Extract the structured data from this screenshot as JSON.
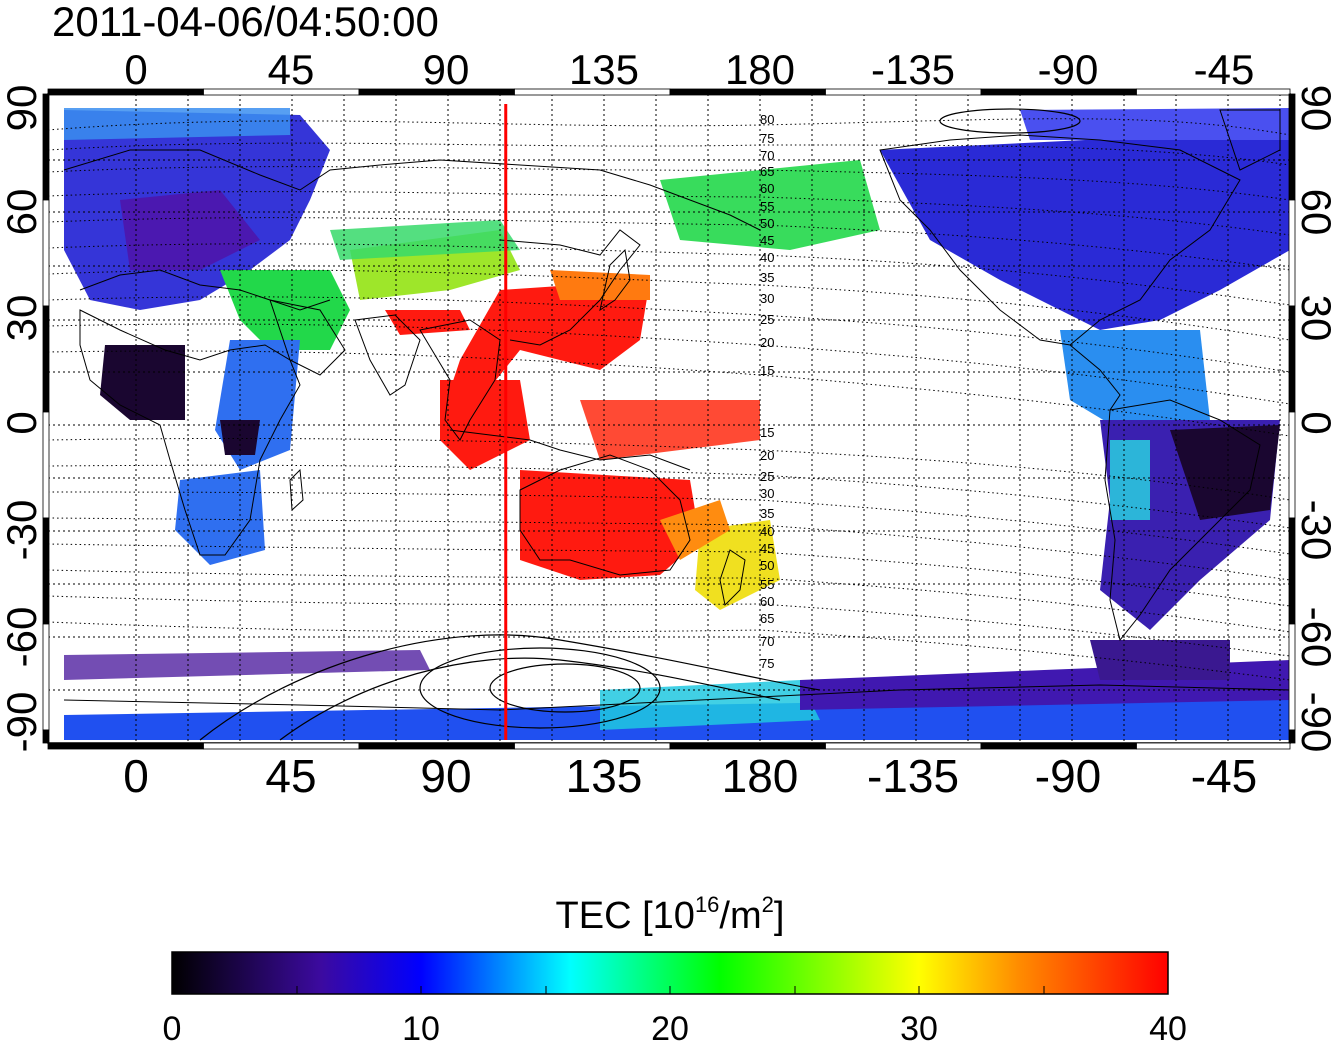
{
  "timestamp": "2011-04-06/04:50:00",
  "map": {
    "lon_ticks_top": [
      "0",
      "45",
      "90",
      "135",
      "180",
      "-135",
      "-90",
      "-45"
    ],
    "lon_ticks_bottom": [
      "0",
      "45",
      "90",
      "135",
      "180",
      "-135",
      "-90",
      "-45"
    ],
    "lat_ticks_left": [
      "90",
      "60",
      "30",
      "0",
      "-30",
      "-60",
      "-90"
    ],
    "lat_ticks_right": [
      "90",
      "60",
      "30",
      "0",
      "-30",
      "-60",
      "-90"
    ],
    "terminator_longitude": 107,
    "contour_labels": [
      "80",
      "75",
      "70",
      "65",
      "60",
      "55",
      "50",
      "45",
      "40",
      "35",
      "30",
      "25",
      "20",
      "15",
      "15",
      "20",
      "25",
      "30",
      "35",
      "40",
      "45",
      "50",
      "55",
      "60",
      "65",
      "70",
      "75"
    ]
  },
  "colorbar": {
    "label_prefix": "TEC  [10",
    "label_exp": "16",
    "label_suffix": "/m",
    "label_exp2": "2",
    "label_end": "]",
    "ticks": [
      "0",
      "10",
      "20",
      "30",
      "40"
    ],
    "min": 0,
    "max": 40,
    "colors": {
      "c0": "#000000",
      "c1": "#3c0aa0",
      "c2": "#0000ff",
      "c3": "#00ffff",
      "c4": "#00ff00",
      "c5": "#ffff00",
      "c6": "#ff8c00",
      "c7": "#ff0000"
    }
  }
}
